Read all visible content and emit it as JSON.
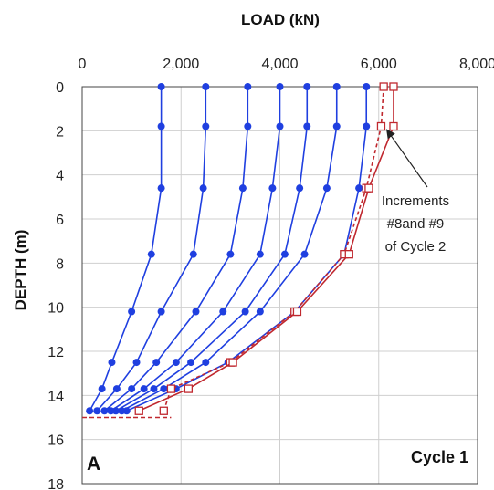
{
  "chart_data": {
    "type": "line",
    "title": "",
    "xlabel": "LOAD (kN)",
    "ylabel": "DEPTH (m)",
    "xlim": [
      0,
      8000
    ],
    "ylim": [
      0,
      18
    ],
    "y_inverted": true,
    "x_axis_position": "top",
    "x_ticks": [
      "0",
      "2,000",
      "4,000",
      "6,000",
      "8,000"
    ],
    "y_ticks": [
      "0",
      "2",
      "4",
      "6",
      "8",
      "10",
      "12",
      "14",
      "16",
      "18"
    ],
    "grid": true,
    "toe_depth": 15.0,
    "panel_label": "A",
    "cycle_label": "Cycle 1",
    "annotation": {
      "lines": [
        "Increments",
        "#8and #9",
        "of Cycle 2"
      ],
      "arrow_target": {
        "x": 6100,
        "y": 1.9
      }
    },
    "colors": {
      "cycle1": "#1f3fe0",
      "cycle2": "#c0282f"
    },
    "series": [
      {
        "group": "cycle1",
        "style": "solid",
        "marker": "circle",
        "points": [
          [
            1600,
            0
          ],
          [
            1600,
            1.8
          ],
          [
            1600,
            4.6
          ],
          [
            1400,
            7.6
          ],
          [
            1000,
            10.2
          ],
          [
            600,
            12.5
          ],
          [
            400,
            13.7
          ],
          [
            150,
            14.7
          ]
        ]
      },
      {
        "group": "cycle1",
        "style": "solid",
        "marker": "circle",
        "points": [
          [
            2500,
            0
          ],
          [
            2500,
            1.8
          ],
          [
            2450,
            4.6
          ],
          [
            2250,
            7.6
          ],
          [
            1600,
            10.2
          ],
          [
            1100,
            12.5
          ],
          [
            700,
            13.7
          ],
          [
            300,
            14.7
          ]
        ]
      },
      {
        "group": "cycle1",
        "style": "solid",
        "marker": "circle",
        "points": [
          [
            3350,
            0
          ],
          [
            3350,
            1.8
          ],
          [
            3250,
            4.6
          ],
          [
            3000,
            7.6
          ],
          [
            2300,
            10.2
          ],
          [
            1500,
            12.5
          ],
          [
            1000,
            13.7
          ],
          [
            450,
            14.7
          ]
        ]
      },
      {
        "group": "cycle1",
        "style": "solid",
        "marker": "circle",
        "points": [
          [
            4000,
            0
          ],
          [
            4000,
            1.8
          ],
          [
            3850,
            4.6
          ],
          [
            3600,
            7.6
          ],
          [
            2850,
            10.2
          ],
          [
            1900,
            12.5
          ],
          [
            1250,
            13.7
          ],
          [
            580,
            14.7
          ]
        ]
      },
      {
        "group": "cycle1",
        "style": "solid",
        "marker": "circle",
        "points": [
          [
            4550,
            0
          ],
          [
            4550,
            1.8
          ],
          [
            4400,
            4.6
          ],
          [
            4100,
            7.6
          ],
          [
            3300,
            10.2
          ],
          [
            2200,
            12.5
          ],
          [
            1450,
            13.7
          ],
          [
            680,
            14.7
          ]
        ]
      },
      {
        "group": "cycle1",
        "style": "solid",
        "marker": "circle",
        "points": [
          [
            5150,
            0
          ],
          [
            5150,
            1.8
          ],
          [
            4950,
            4.6
          ],
          [
            4500,
            7.6
          ],
          [
            3600,
            10.2
          ],
          [
            2500,
            12.5
          ],
          [
            1650,
            13.7
          ],
          [
            800,
            14.7
          ]
        ]
      },
      {
        "group": "cycle1",
        "style": "solid",
        "marker": "circle",
        "points": [
          [
            5750,
            0
          ],
          [
            5750,
            1.8
          ],
          [
            5600,
            4.6
          ],
          [
            5300,
            7.6
          ],
          [
            4300,
            10.2
          ],
          [
            2950,
            12.5
          ],
          [
            1900,
            13.7
          ],
          [
            900,
            14.7
          ]
        ]
      },
      {
        "group": "cycle2",
        "style": "dashed",
        "marker": "square",
        "points": [
          [
            6100,
            0
          ],
          [
            6050,
            1.8
          ],
          [
            5750,
            4.6
          ],
          [
            5300,
            7.6
          ],
          [
            4300,
            10.2
          ],
          [
            3000,
            12.5
          ],
          [
            1800,
            13.7
          ],
          [
            1650,
            14.7
          ]
        ]
      },
      {
        "group": "cycle2",
        "style": "solid",
        "marker": "square",
        "points": [
          [
            6300,
            0
          ],
          [
            6300,
            1.8
          ],
          [
            5800,
            4.6
          ],
          [
            5400,
            7.6
          ],
          [
            4350,
            10.2
          ],
          [
            3050,
            12.5
          ],
          [
            2150,
            13.7
          ],
          [
            1150,
            14.7
          ]
        ]
      }
    ]
  }
}
